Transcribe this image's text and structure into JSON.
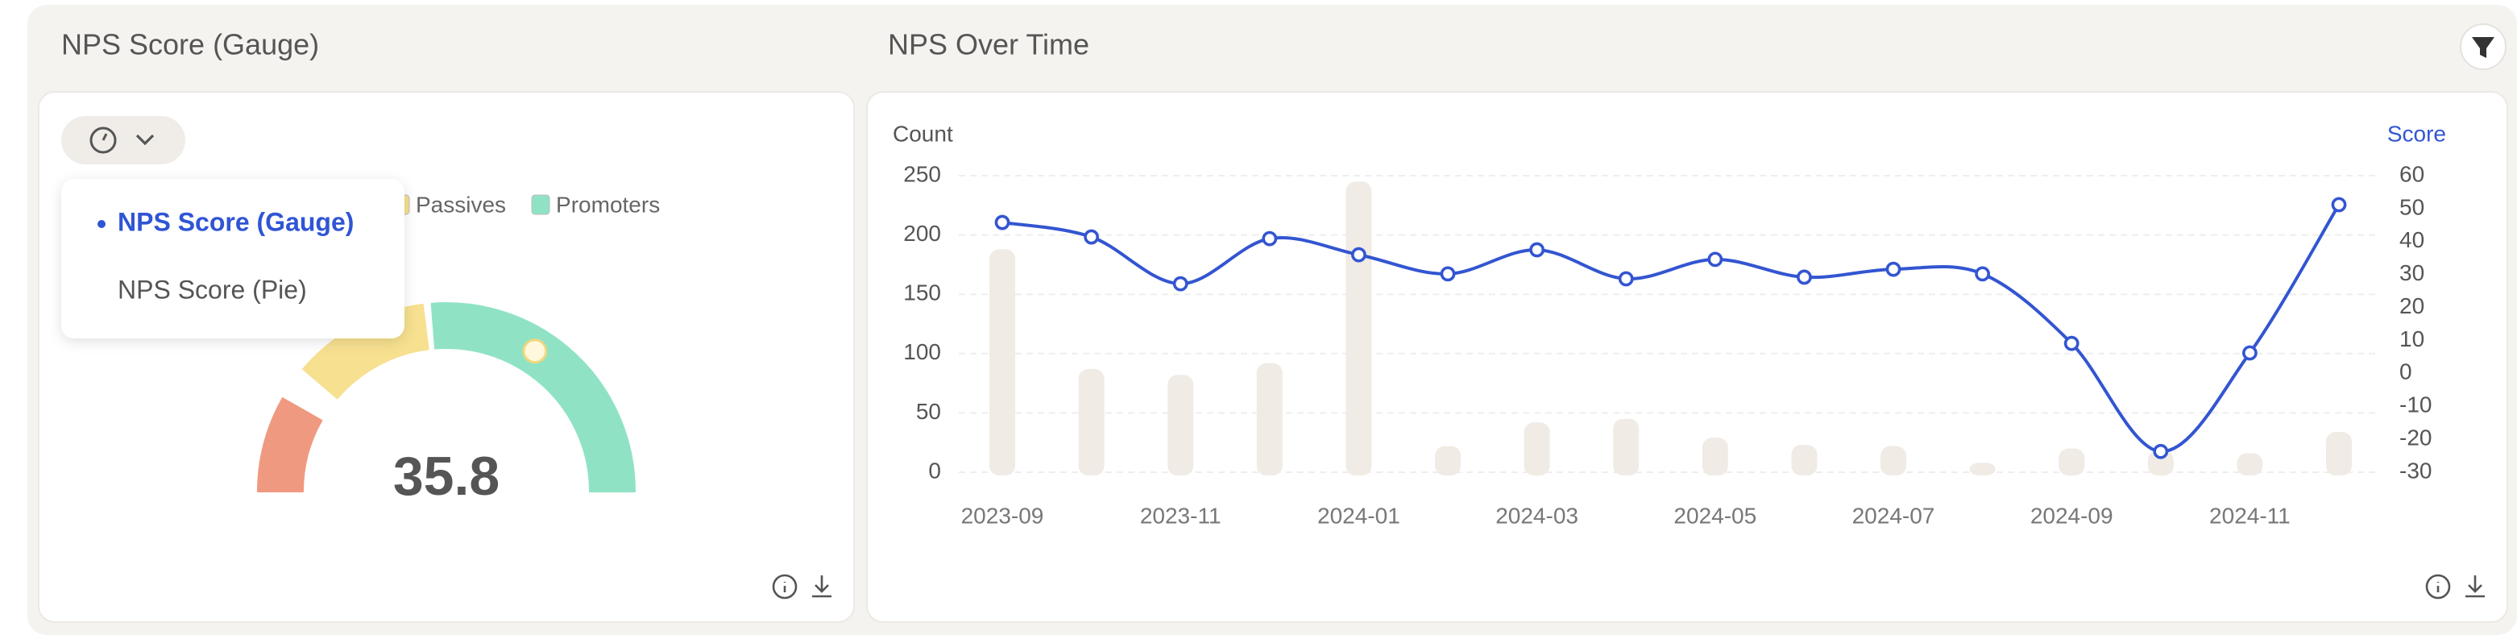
{
  "menu": {
    "options": [
      "NPS Score (Gauge)",
      "NPS Score (Pie)"
    ],
    "selected": 0
  },
  "chart_data": [
    {
      "type": "gauge",
      "title": "NPS Score (Gauge)",
      "value": 35.8,
      "range": [
        -100,
        100
      ],
      "legend": [
        {
          "name": "Passives",
          "color": "#f7e08f"
        },
        {
          "name": "Promoters",
          "color": "#8fe3c4"
        }
      ],
      "bands": [
        {
          "from": -100,
          "to": -67,
          "color": "#ef9a80"
        },
        {
          "from": -55,
          "to": -8,
          "color": "#f7e08f"
        },
        {
          "from": -5,
          "to": 100,
          "color": "#8fe3c4"
        }
      ]
    },
    {
      "type": "combo",
      "title": "NPS Over Time",
      "ylabel": "Count",
      "y2label": "Score",
      "categories": [
        "2023-09",
        null,
        "2023-11",
        null,
        "2024-01",
        null,
        "2024-03",
        null,
        "2024-05",
        null,
        "2024-07",
        null,
        "2024-09",
        null,
        "2024-11",
        null
      ],
      "series": [
        {
          "kind": "bar",
          "color": "#f0ebe5",
          "values": [
            188,
            87,
            82,
            92,
            245,
            22,
            42,
            45,
            29,
            23,
            22,
            8,
            20,
            18,
            16,
            34
          ]
        },
        {
          "kind": "line",
          "axis": "y2",
          "color": "#3355d1",
          "values": [
            45.8,
            41.4,
            27.2,
            40.9,
            36.0,
            30.2,
            37.5,
            28.7,
            34.6,
            29.2,
            31.6,
            30.2,
            9.1,
            -23.7,
            6.2,
            51.2
          ]
        }
      ],
      "ylim": [
        0,
        250
      ],
      "yticks": [
        0,
        50,
        100,
        150,
        200,
        250
      ],
      "y2lim": [
        -30,
        60
      ],
      "y2ticks": [
        -30,
        -20,
        -10,
        0,
        10,
        20,
        30,
        40,
        50,
        60
      ],
      "grid": true
    }
  ]
}
